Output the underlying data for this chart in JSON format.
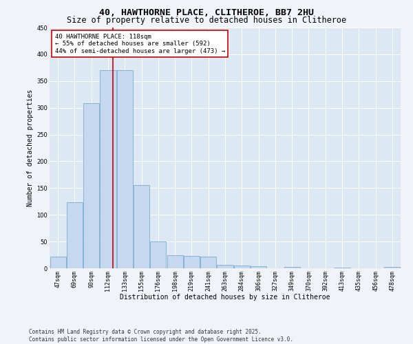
{
  "title": "40, HAWTHORNE PLACE, CLITHEROE, BB7 2HU",
  "subtitle": "Size of property relative to detached houses in Clitheroe",
  "xlabel": "Distribution of detached houses by size in Clitheroe",
  "ylabel": "Number of detached properties",
  "categories": [
    "47sqm",
    "69sqm",
    "90sqm",
    "112sqm",
    "133sqm",
    "155sqm",
    "176sqm",
    "198sqm",
    "219sqm",
    "241sqm",
    "263sqm",
    "284sqm",
    "306sqm",
    "327sqm",
    "349sqm",
    "370sqm",
    "392sqm",
    "413sqm",
    "435sqm",
    "456sqm",
    "478sqm"
  ],
  "values": [
    22,
    124,
    308,
    370,
    370,
    155,
    50,
    25,
    23,
    22,
    6,
    5,
    4,
    0,
    2,
    0,
    0,
    1,
    0,
    0,
    2
  ],
  "bar_color": "#c5d8f0",
  "bar_edge_color": "#7aabce",
  "highlight_line_color": "#cc0000",
  "annotation_text": "40 HAWTHORNE PLACE: 118sqm\n← 55% of detached houses are smaller (592)\n44% of semi-detached houses are larger (473) →",
  "annotation_box_color": "#ffffff",
  "annotation_box_edge_color": "#cc0000",
  "ylim": [
    0,
    450
  ],
  "yticks": [
    0,
    50,
    100,
    150,
    200,
    250,
    300,
    350,
    400,
    450
  ],
  "plot_bg_color": "#dce9f5",
  "fig_bg_color": "#f0f4f8",
  "footer_line1": "Contains HM Land Registry data © Crown copyright and database right 2025.",
  "footer_line2": "Contains public sector information licensed under the Open Government Licence v3.0.",
  "title_fontsize": 9.5,
  "subtitle_fontsize": 8.5,
  "axis_label_fontsize": 7,
  "tick_fontsize": 6,
  "annotation_fontsize": 6.5,
  "footer_fontsize": 5.5,
  "ylabel_fontsize": 7
}
